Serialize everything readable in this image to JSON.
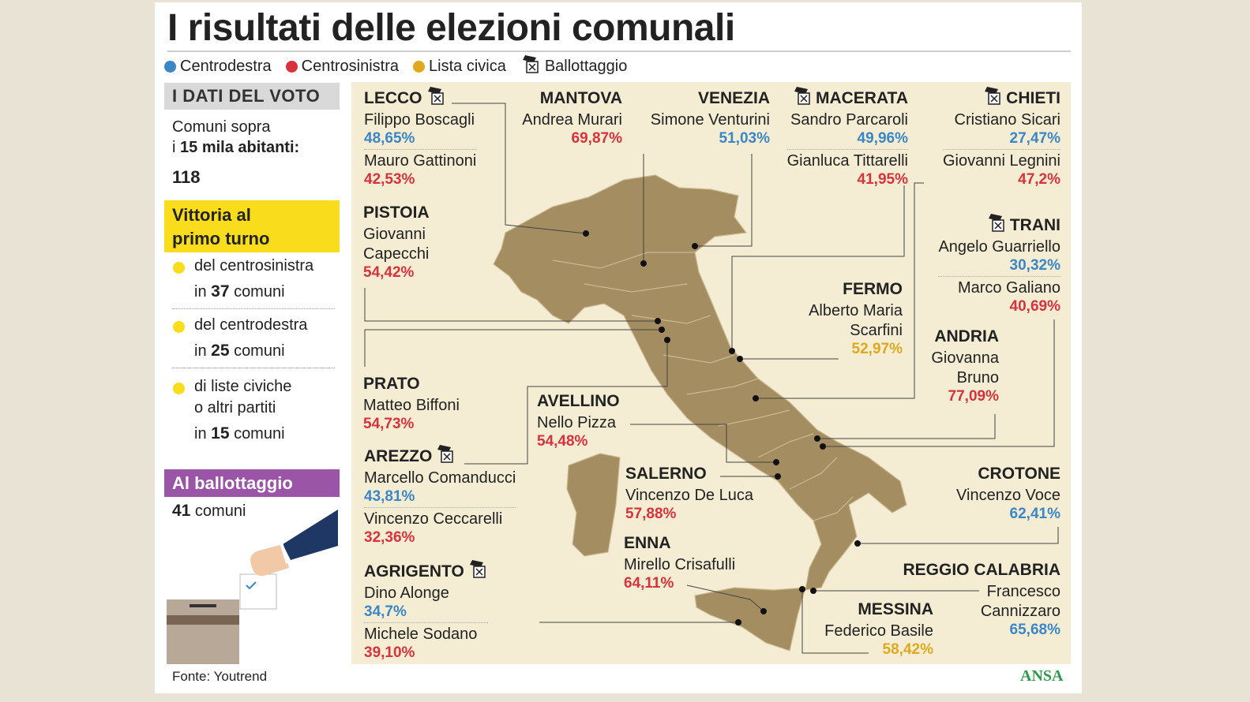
{
  "header": {
    "title": "I risultati delle elezioni comunali"
  },
  "legend": {
    "items": [
      {
        "label": "Centrodestra",
        "color": "#3a86c6"
      },
      {
        "label": "Centrosinistra",
        "color": "#d8323c"
      },
      {
        "label": "Lista civica",
        "color": "#e0a81c"
      }
    ],
    "ballottaggio": "Ballottaggio"
  },
  "sidebar": {
    "heading": "I DATI DEL VOTO",
    "comuni_line1": "Comuni sopra",
    "comuni_line2_prefix": "i",
    "comuni_line2_bold": "15 mila abitanti",
    "comuni_line2_suffix": ":",
    "comuni_total": 118,
    "vittoria": "Vittoria al primo turno",
    "vittoria_color": "#f9dc1c",
    "items": [
      {
        "lines": [
          "del centrosinistra"
        ],
        "prefix": "in",
        "number": 37,
        "suffix": "comuni"
      },
      {
        "lines": [
          "del centrodestra"
        ],
        "prefix": "in",
        "number": 25,
        "suffix": "comuni"
      },
      {
        "lines": [
          "di liste civiche",
          "o altri partiti"
        ],
        "prefix": "in",
        "number": 15,
        "suffix": "comuni"
      }
    ],
    "ballottaggio_heading": "Al ballottaggio",
    "ballottaggio_color": "#9a55a6",
    "ballottaggio_number": 41,
    "ballottaggio_suffix": "comuni"
  },
  "cities": [
    {
      "name": "LECCO",
      "ballottaggio": true,
      "candidates": [
        {
          "name": "Filippo Boscagli",
          "result": "48,65%",
          "color": "#3a86c6"
        },
        {
          "name": "Mauro Gattinoni",
          "result": "42,53%",
          "color": "#d8323c"
        }
      ]
    },
    {
      "name": "MANTOVA",
      "ballottaggio": false,
      "candidates": [
        {
          "name": "Andrea Murari",
          "result": "69,87%",
          "color": "#d8323c"
        }
      ]
    },
    {
      "name": "VENEZIA",
      "ballottaggio": false,
      "candidates": [
        {
          "name": "Simone Venturini",
          "result": "51,03%",
          "color": "#3a86c6"
        }
      ]
    },
    {
      "name": "MACERATA",
      "ballottaggio": true,
      "candidates": [
        {
          "name": "Sandro Parcaroli",
          "result": "49,96%",
          "color": "#3a86c6"
        },
        {
          "name": "Gianluca Tittarelli",
          "result": "41,95%",
          "color": "#d8323c"
        }
      ]
    },
    {
      "name": "CHIETI",
      "ballottaggio": true,
      "candidates": [
        {
          "name": "Cristiano Sicari",
          "result": "27,47%",
          "color": "#3a86c6"
        },
        {
          "name": "Giovanni Legnini",
          "result": "47,2%",
          "color": "#d8323c"
        }
      ]
    },
    {
      "name": "PISTOIA",
      "ballottaggio": false,
      "candidates": [
        {
          "name": "Giovanni Capecchi",
          "result": "54,42%",
          "color": "#d8323c"
        }
      ]
    },
    {
      "name": "TRANI",
      "ballottaggio": true,
      "candidates": [
        {
          "name": "Angelo Guarriello",
          "result": "30,32%",
          "color": "#3a86c6"
        },
        {
          "name": "Marco Galiano",
          "result": "40,69%",
          "color": "#d8323c"
        }
      ]
    },
    {
      "name": "FERMO",
      "ballottaggio": false,
      "candidates": [
        {
          "name": "Alberto Maria Scarfini",
          "result": "52,97%",
          "color": "#e0a81c"
        }
      ]
    },
    {
      "name": "ANDRIA",
      "ballottaggio": false,
      "candidates": [
        {
          "name": "Giovanna Bruno",
          "result": "77,09%",
          "color": "#d8323c"
        }
      ]
    },
    {
      "name": "PRATO",
      "ballottaggio": false,
      "candidates": [
        {
          "name": "Matteo Biffoni",
          "result": "54,73%",
          "color": "#d8323c"
        }
      ]
    },
    {
      "name": "AVELLINO",
      "ballottaggio": false,
      "candidates": [
        {
          "name": "Nello Pizza",
          "result": "54,48%",
          "color": "#d8323c"
        }
      ]
    },
    {
      "name": "AREZZO",
      "ballottaggio": true,
      "candidates": [
        {
          "name": "Marcello Comanducci",
          "result": "43,81%",
          "color": "#3a86c6"
        },
        {
          "name": "Vincenzo Ceccarelli",
          "result": "32,36%",
          "color": "#d8323c"
        }
      ]
    },
    {
      "name": "SALERNO",
      "ballottaggio": false,
      "candidates": [
        {
          "name": "Vincenzo De Luca",
          "result": "57,88%",
          "color": "#d8323c"
        }
      ]
    },
    {
      "name": "CROTONE",
      "ballottaggio": false,
      "candidates": [
        {
          "name": "Vincenzo Voce",
          "result": "62,41%",
          "color": "#3a86c6"
        }
      ]
    },
    {
      "name": "ENNA",
      "ballottaggio": false,
      "candidates": [
        {
          "name": "Mirello Crisafulli",
          "result": "64,11%",
          "color": "#d8323c"
        }
      ]
    },
    {
      "name": "AGRIGENTO",
      "ballottaggio": true,
      "candidates": [
        {
          "name": "Dino Alonge",
          "result": "34,7%",
          "color": "#3a86c6"
        },
        {
          "name": "Michele Sodano",
          "result": "39,10%",
          "color": "#d8323c"
        }
      ]
    },
    {
      "name": "REGGIO CALABRIA",
      "ballottaggio": false,
      "candidates": [
        {
          "name": "Francesco Cannizzaro",
          "result": "65,68%",
          "color": "#3a86c6"
        }
      ]
    },
    {
      "name": "MESSINA",
      "ballottaggio": false,
      "candidates": [
        {
          "name": "Federico Basile",
          "result": "58,42%",
          "color": "#e0a81c"
        }
      ]
    }
  ],
  "footer": {
    "source": "Fonte: Youtrend",
    "logo": "ANSA"
  }
}
